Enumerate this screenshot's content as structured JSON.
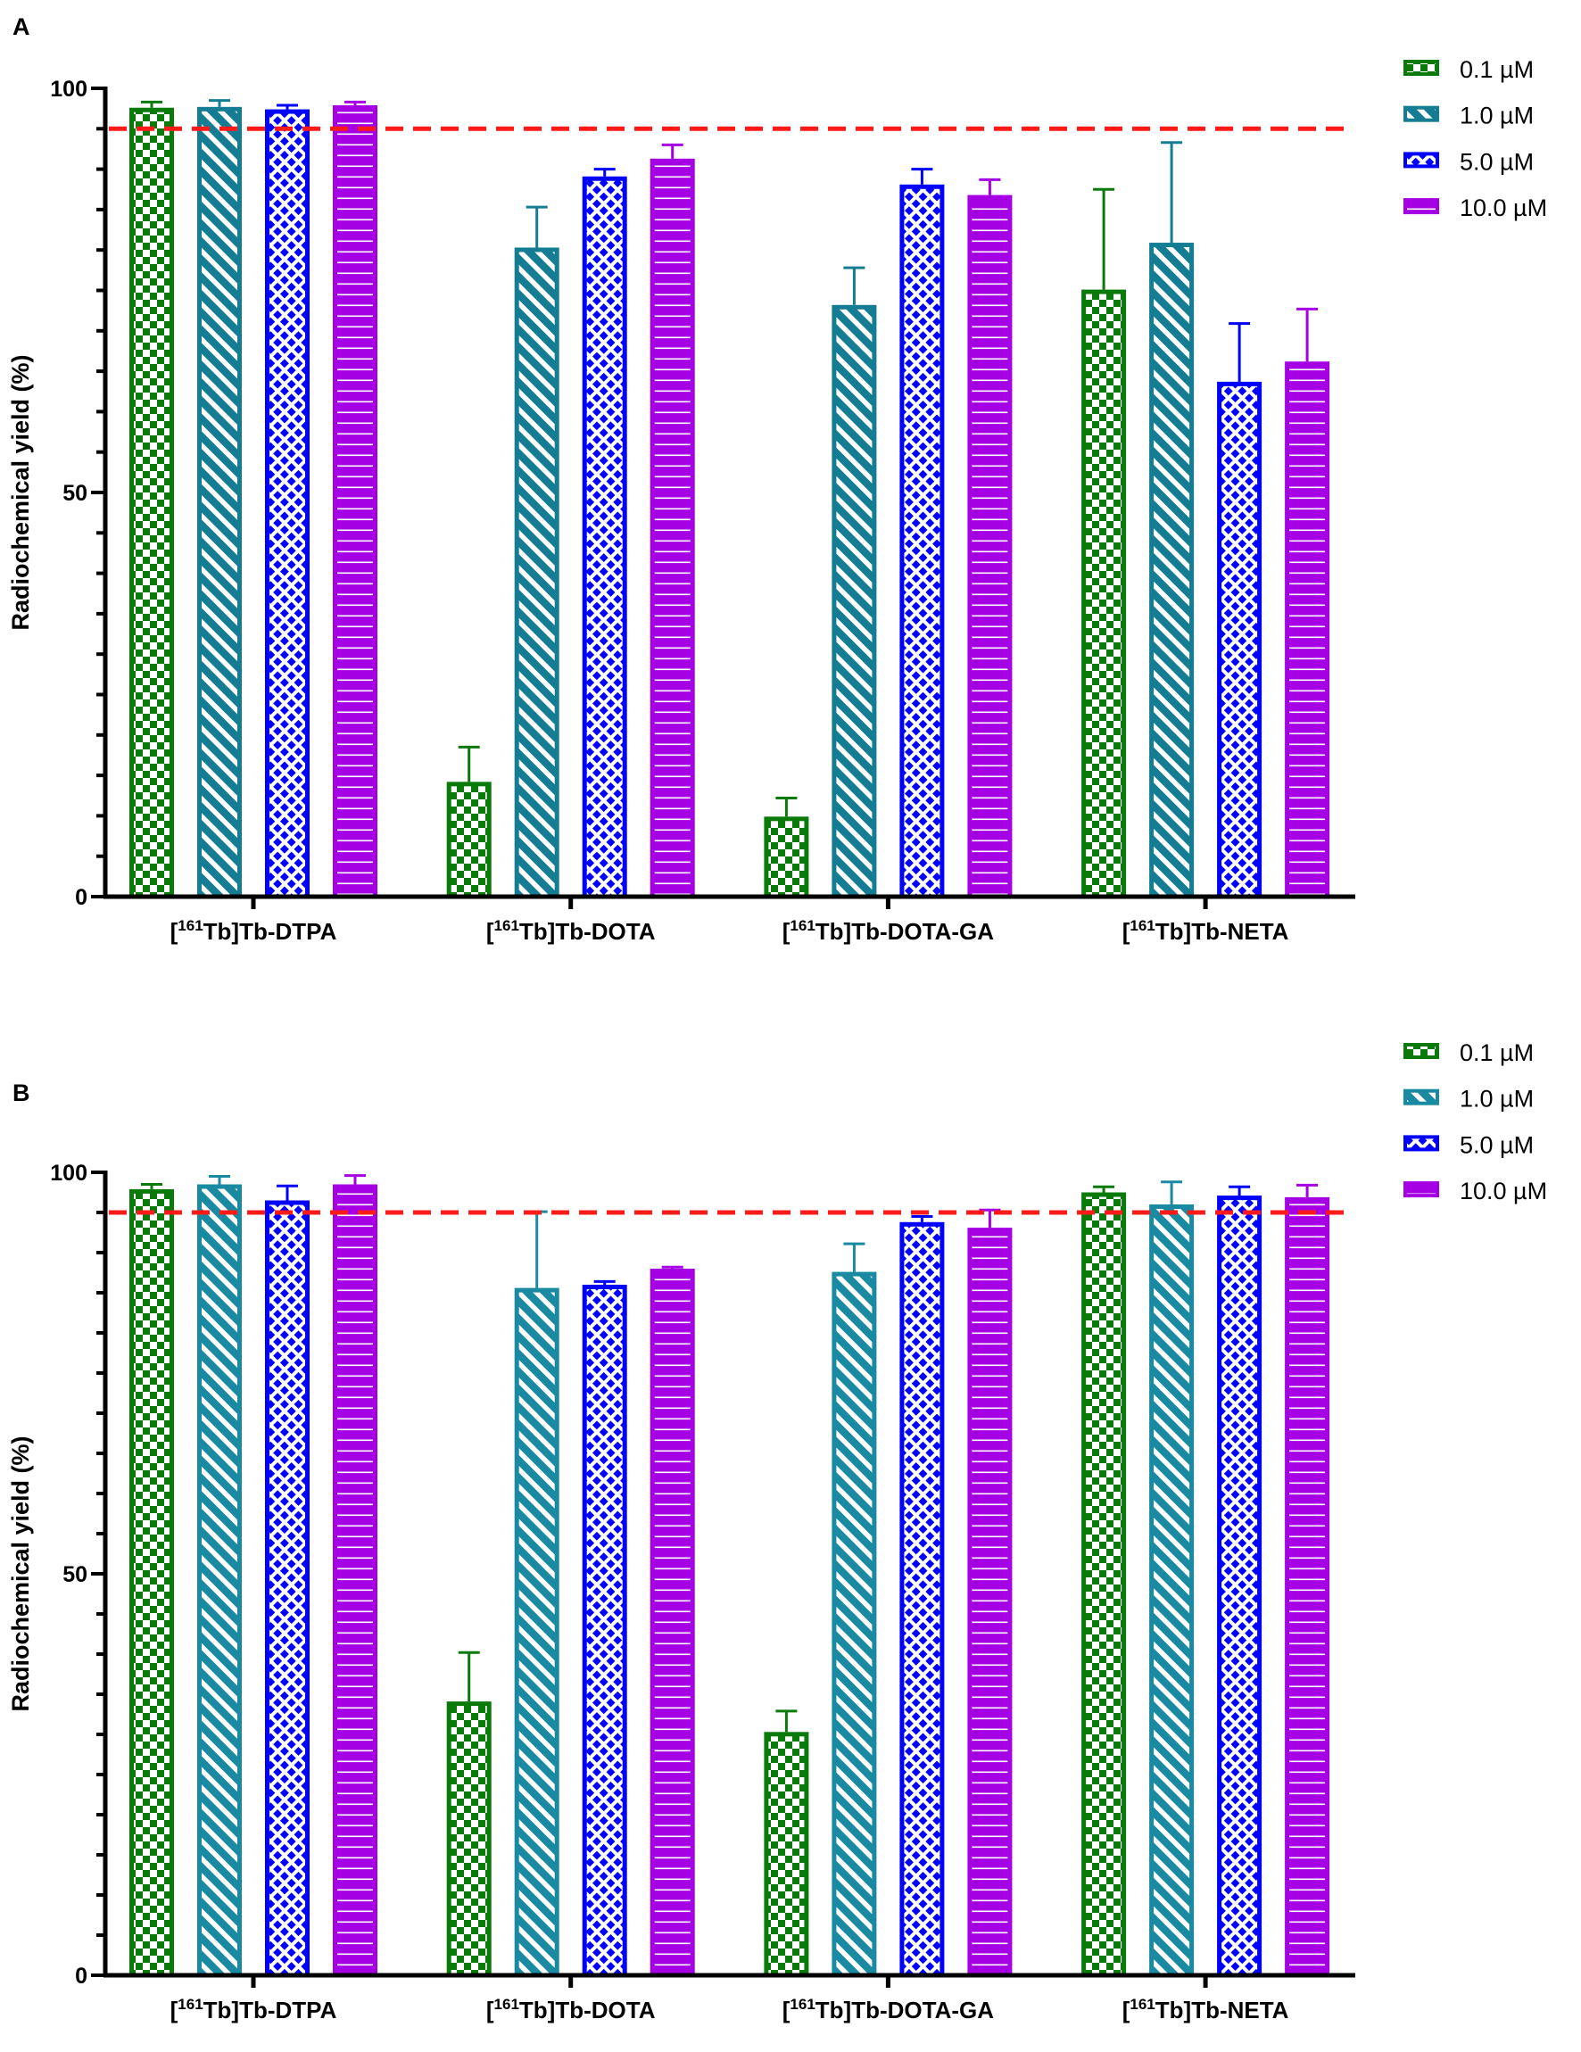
{
  "chart_data": [
    {
      "panel_label": "A",
      "type": "bar",
      "ylabel": "Radiochemical yield (%)",
      "ylim": [
        0,
        100
      ],
      "yticks": [
        "0",
        "50",
        "100"
      ],
      "minor_tick_step": 5,
      "grid": false,
      "legend": "top-right",
      "reference_line": {
        "value": 95,
        "color": "#ff1a1a",
        "style": "dashed"
      },
      "categories": [
        {
          "open": "[",
          "sup": "161",
          "rest": "Tb]Tb-DTPA"
        },
        {
          "open": "[",
          "sup": "161",
          "rest": "Tb]Tb-DOTA"
        },
        {
          "open": "[",
          "sup": "161",
          "rest": "Tb]Tb-DOTA-GA"
        },
        {
          "open": "[",
          "sup": "161",
          "rest": "Tb]Tb-NETA"
        }
      ],
      "series": [
        {
          "name": "0.1 µM",
          "color": "#0a7a0a",
          "pattern": "checkerboard",
          "values": [
            97.6,
            14.2,
            9.9,
            75.1
          ],
          "errors": [
            0.7,
            4.3,
            2.3,
            12.4
          ]
        },
        {
          "name": "1.0 µM",
          "color": "#147d93",
          "pattern": "diagonal-stripes",
          "values": [
            97.7,
            80.3,
            73.2,
            80.9
          ],
          "errors": [
            0.8,
            5.0,
            4.6,
            12.4
          ]
        },
        {
          "name": "5.0 µM",
          "color": "#0000ff",
          "pattern": "diamond-lattice",
          "values": [
            97.4,
            89.1,
            88.1,
            63.7
          ],
          "errors": [
            0.5,
            0.9,
            1.9,
            7.2
          ]
        },
        {
          "name": "10.0 µM",
          "color": "#a400e3",
          "pattern": "horizontal-lines",
          "values": [
            97.9,
            91.3,
            86.8,
            66.2
          ],
          "errors": [
            0.4,
            1.7,
            1.9,
            6.5
          ]
        }
      ]
    },
    {
      "panel_label": "B",
      "type": "bar",
      "ylabel": "Radiochemical yield  (%)",
      "ylim": [
        0,
        100
      ],
      "yticks": [
        "0",
        "50",
        "100"
      ],
      "minor_tick_step": 5,
      "grid": false,
      "legend": "top-right",
      "reference_line": {
        "value": 95,
        "color": "#ff1a1a",
        "style": "dashed"
      },
      "categories": [
        {
          "open": "[",
          "sup": "161",
          "rest": "Tb]Tb-DTPA"
        },
        {
          "open": "[",
          "sup": "161",
          "rest": "Tb]Tb-DOTA"
        },
        {
          "open": "[",
          "sup": "161",
          "rest": "Tb]Tb-DOTA-GA"
        },
        {
          "open": "[",
          "sup": "161",
          "rest": "Tb]Tb-NETA"
        }
      ],
      "series": [
        {
          "name": "0.1 µM",
          "color": "#0a7a0a",
          "pattern": "checkerboard",
          "values": [
            97.9,
            34.1,
            30.3,
            97.5
          ],
          "errors": [
            0.6,
            6.1,
            2.6,
            0.7
          ]
        },
        {
          "name": "1.0 µM",
          "color": "#1a8aa3",
          "pattern": "diagonal-stripes",
          "values": [
            98.5,
            85.6,
            87.6,
            96.0
          ],
          "errors": [
            1.0,
            9.5,
            3.5,
            2.8
          ]
        },
        {
          "name": "5.0 µM",
          "color": "#0000ff",
          "pattern": "diamond-lattice",
          "values": [
            96.5,
            86.0,
            93.8,
            97.1
          ],
          "errors": [
            1.8,
            0.4,
            0.7,
            1.1
          ]
        },
        {
          "name": "10.0 µM",
          "color": "#a400e3",
          "pattern": "horizontal-lines",
          "values": [
            98.5,
            88.0,
            93.1,
            96.9
          ],
          "errors": [
            1.1,
            0.2,
            2.2,
            1.5
          ]
        }
      ]
    }
  ]
}
